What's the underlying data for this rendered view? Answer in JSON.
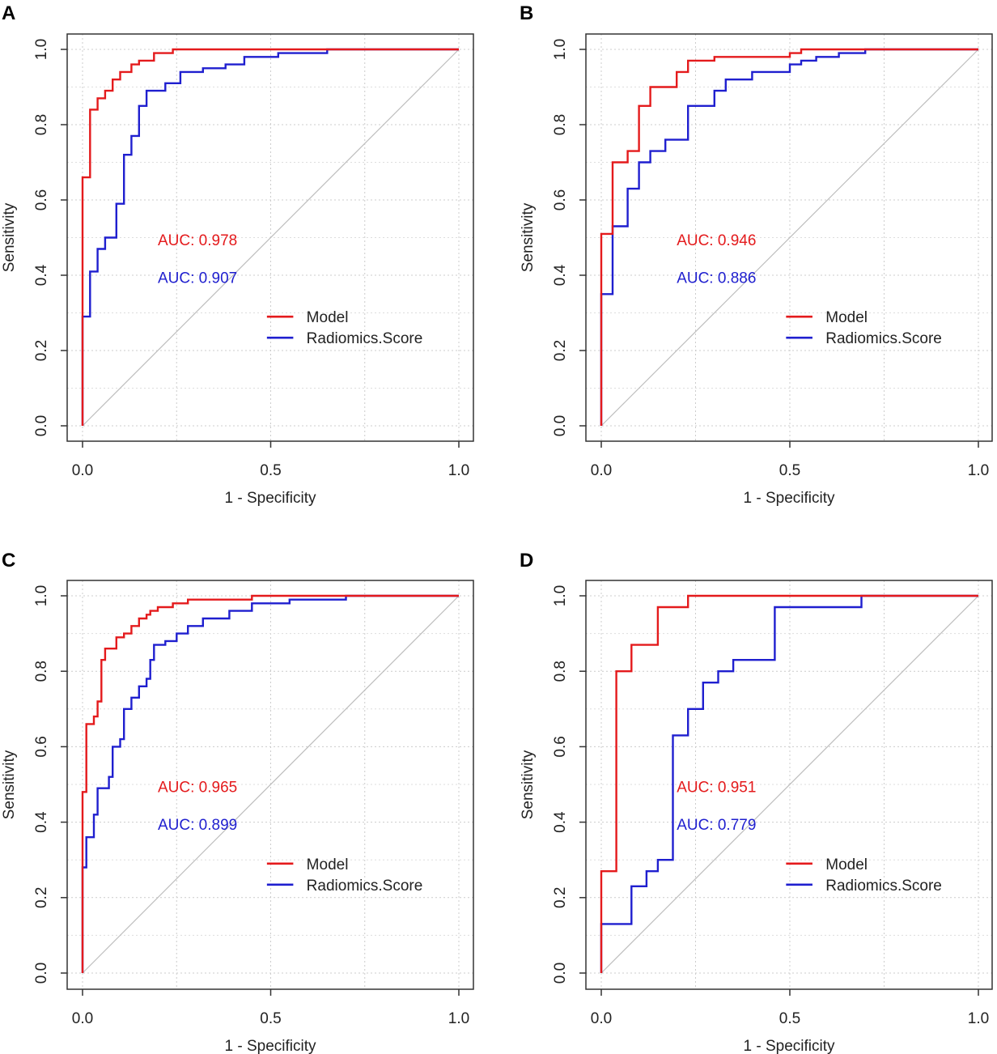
{
  "chart_data": [
    {
      "panel": "A",
      "type": "line",
      "xlabel": "1 - Specificity",
      "ylabel": "Sensitivity",
      "xlim": [
        0,
        1
      ],
      "ylim": [
        0,
        1
      ],
      "x_ticks": [
        "0.0",
        "0.5",
        "1.0"
      ],
      "y_ticks": [
        "0.0",
        "0.2",
        "0.4",
        "0.6",
        "0.8",
        "1.0"
      ],
      "grid": true,
      "diagonal": true,
      "legend_position": "bottom-right",
      "series": [
        {
          "name": "Model",
          "color": "#e41a1c",
          "auc_label": "AUC: 0.978",
          "points": [
            [
              0,
              0
            ],
            [
              0,
              0.29
            ],
            [
              0,
              0.66
            ],
            [
              0.02,
              0.66
            ],
            [
              0.02,
              0.84
            ],
            [
              0.04,
              0.84
            ],
            [
              0.04,
              0.87
            ],
            [
              0.06,
              0.87
            ],
            [
              0.06,
              0.89
            ],
            [
              0.08,
              0.89
            ],
            [
              0.08,
              0.92
            ],
            [
              0.1,
              0.92
            ],
            [
              0.1,
              0.94
            ],
            [
              0.13,
              0.94
            ],
            [
              0.13,
              0.96
            ],
            [
              0.15,
              0.96
            ],
            [
              0.15,
              0.97
            ],
            [
              0.19,
              0.97
            ],
            [
              0.19,
              0.99
            ],
            [
              0.24,
              0.99
            ],
            [
              0.24,
              1.0
            ],
            [
              0.65,
              1.0
            ],
            [
              1.0,
              1.0
            ]
          ]
        },
        {
          "name": "Radiomics.Score",
          "color": "#1f1fcf",
          "auc_label": "AUC: 0.907",
          "points": [
            [
              0,
              0
            ],
            [
              0,
              0.29
            ],
            [
              0.02,
              0.29
            ],
            [
              0.02,
              0.41
            ],
            [
              0.04,
              0.41
            ],
            [
              0.04,
              0.47
            ],
            [
              0.06,
              0.47
            ],
            [
              0.06,
              0.5
            ],
            [
              0.09,
              0.5
            ],
            [
              0.09,
              0.59
            ],
            [
              0.11,
              0.59
            ],
            [
              0.11,
              0.72
            ],
            [
              0.13,
              0.72
            ],
            [
              0.13,
              0.77
            ],
            [
              0.15,
              0.77
            ],
            [
              0.15,
              0.85
            ],
            [
              0.17,
              0.85
            ],
            [
              0.17,
              0.89
            ],
            [
              0.22,
              0.89
            ],
            [
              0.22,
              0.91
            ],
            [
              0.26,
              0.91
            ],
            [
              0.26,
              0.94
            ],
            [
              0.32,
              0.94
            ],
            [
              0.32,
              0.95
            ],
            [
              0.38,
              0.95
            ],
            [
              0.38,
              0.96
            ],
            [
              0.43,
              0.96
            ],
            [
              0.43,
              0.98
            ],
            [
              0.52,
              0.98
            ],
            [
              0.52,
              0.99
            ],
            [
              0.65,
              0.99
            ],
            [
              0.65,
              1.0
            ],
            [
              1.0,
              1.0
            ]
          ]
        }
      ]
    },
    {
      "panel": "B",
      "type": "line",
      "xlabel": "1 - Specificity",
      "ylabel": "Sensitivity",
      "xlim": [
        0,
        1
      ],
      "ylim": [
        0,
        1
      ],
      "x_ticks": [
        "0.0",
        "0.5",
        "1.0"
      ],
      "y_ticks": [
        "0.0",
        "0.2",
        "0.4",
        "0.6",
        "0.8",
        "1.0"
      ],
      "grid": true,
      "diagonal": true,
      "legend_position": "bottom-right",
      "series": [
        {
          "name": "Model",
          "color": "#e41a1c",
          "auc_label": "AUC: 0.946",
          "points": [
            [
              0,
              0
            ],
            [
              0,
              0.35
            ],
            [
              0,
              0.51
            ],
            [
              0.03,
              0.51
            ],
            [
              0.03,
              0.7
            ],
            [
              0.07,
              0.7
            ],
            [
              0.07,
              0.73
            ],
            [
              0.1,
              0.73
            ],
            [
              0.1,
              0.85
            ],
            [
              0.13,
              0.85
            ],
            [
              0.13,
              0.9
            ],
            [
              0.2,
              0.9
            ],
            [
              0.2,
              0.94
            ],
            [
              0.23,
              0.94
            ],
            [
              0.23,
              0.97
            ],
            [
              0.3,
              0.97
            ],
            [
              0.3,
              0.98
            ],
            [
              0.5,
              0.98
            ],
            [
              0.5,
              0.99
            ],
            [
              0.53,
              0.99
            ],
            [
              0.53,
              1.0
            ],
            [
              0.7,
              1.0
            ],
            [
              1.0,
              1.0
            ]
          ]
        },
        {
          "name": "Radiomics.Score",
          "color": "#1f1fcf",
          "auc_label": "AUC: 0.886",
          "points": [
            [
              0,
              0
            ],
            [
              0,
              0.35
            ],
            [
              0.03,
              0.35
            ],
            [
              0.03,
              0.53
            ],
            [
              0.07,
              0.53
            ],
            [
              0.07,
              0.63
            ],
            [
              0.1,
              0.63
            ],
            [
              0.1,
              0.7
            ],
            [
              0.13,
              0.7
            ],
            [
              0.13,
              0.73
            ],
            [
              0.17,
              0.73
            ],
            [
              0.17,
              0.76
            ],
            [
              0.23,
              0.76
            ],
            [
              0.23,
              0.85
            ],
            [
              0.3,
              0.85
            ],
            [
              0.3,
              0.89
            ],
            [
              0.33,
              0.89
            ],
            [
              0.33,
              0.92
            ],
            [
              0.4,
              0.92
            ],
            [
              0.4,
              0.94
            ],
            [
              0.5,
              0.94
            ],
            [
              0.5,
              0.96
            ],
            [
              0.53,
              0.96
            ],
            [
              0.53,
              0.97
            ],
            [
              0.57,
              0.97
            ],
            [
              0.57,
              0.98
            ],
            [
              0.63,
              0.98
            ],
            [
              0.63,
              0.99
            ],
            [
              0.7,
              0.99
            ],
            [
              0.7,
              1.0
            ],
            [
              1.0,
              1.0
            ]
          ]
        }
      ]
    },
    {
      "panel": "C",
      "type": "line",
      "xlabel": "1 - Specificity",
      "ylabel": "Sensitivity",
      "xlim": [
        0,
        1
      ],
      "ylim": [
        0,
        1
      ],
      "x_ticks": [
        "0.0",
        "0.5",
        "1.0"
      ],
      "y_ticks": [
        "0.0",
        "0.2",
        "0.4",
        "0.6",
        "0.8",
        "1.0"
      ],
      "grid": true,
      "diagonal": true,
      "legend_position": "bottom-right",
      "series": [
        {
          "name": "Model",
          "color": "#e41a1c",
          "auc_label": "AUC: 0.965",
          "points": [
            [
              0,
              0
            ],
            [
              0,
              0.28
            ],
            [
              0,
              0.48
            ],
            [
              0.01,
              0.48
            ],
            [
              0.01,
              0.66
            ],
            [
              0.03,
              0.66
            ],
            [
              0.03,
              0.68
            ],
            [
              0.04,
              0.68
            ],
            [
              0.04,
              0.72
            ],
            [
              0.05,
              0.72
            ],
            [
              0.05,
              0.83
            ],
            [
              0.06,
              0.83
            ],
            [
              0.06,
              0.86
            ],
            [
              0.09,
              0.86
            ],
            [
              0.09,
              0.89
            ],
            [
              0.11,
              0.89
            ],
            [
              0.11,
              0.9
            ],
            [
              0.13,
              0.9
            ],
            [
              0.13,
              0.92
            ],
            [
              0.15,
              0.92
            ],
            [
              0.15,
              0.94
            ],
            [
              0.17,
              0.94
            ],
            [
              0.17,
              0.95
            ],
            [
              0.18,
              0.95
            ],
            [
              0.18,
              0.96
            ],
            [
              0.2,
              0.96
            ],
            [
              0.2,
              0.97
            ],
            [
              0.24,
              0.97
            ],
            [
              0.24,
              0.98
            ],
            [
              0.28,
              0.98
            ],
            [
              0.28,
              0.99
            ],
            [
              0.45,
              0.99
            ],
            [
              0.45,
              1.0
            ],
            [
              0.7,
              1.0
            ],
            [
              1.0,
              1.0
            ]
          ]
        },
        {
          "name": "Radiomics.Score",
          "color": "#1f1fcf",
          "auc_label": "AUC: 0.899",
          "points": [
            [
              0,
              0
            ],
            [
              0,
              0.28
            ],
            [
              0.01,
              0.28
            ],
            [
              0.01,
              0.36
            ],
            [
              0.03,
              0.36
            ],
            [
              0.03,
              0.42
            ],
            [
              0.04,
              0.42
            ],
            [
              0.04,
              0.49
            ],
            [
              0.07,
              0.49
            ],
            [
              0.07,
              0.52
            ],
            [
              0.08,
              0.52
            ],
            [
              0.08,
              0.6
            ],
            [
              0.1,
              0.6
            ],
            [
              0.1,
              0.62
            ],
            [
              0.11,
              0.62
            ],
            [
              0.11,
              0.7
            ],
            [
              0.13,
              0.7
            ],
            [
              0.13,
              0.73
            ],
            [
              0.15,
              0.73
            ],
            [
              0.15,
              0.76
            ],
            [
              0.17,
              0.76
            ],
            [
              0.17,
              0.78
            ],
            [
              0.18,
              0.78
            ],
            [
              0.18,
              0.83
            ],
            [
              0.19,
              0.83
            ],
            [
              0.19,
              0.87
            ],
            [
              0.22,
              0.87
            ],
            [
              0.22,
              0.88
            ],
            [
              0.25,
              0.88
            ],
            [
              0.25,
              0.9
            ],
            [
              0.28,
              0.9
            ],
            [
              0.28,
              0.92
            ],
            [
              0.32,
              0.92
            ],
            [
              0.32,
              0.94
            ],
            [
              0.39,
              0.94
            ],
            [
              0.39,
              0.96
            ],
            [
              0.45,
              0.96
            ],
            [
              0.45,
              0.98
            ],
            [
              0.55,
              0.98
            ],
            [
              0.55,
              0.99
            ],
            [
              0.7,
              0.99
            ],
            [
              0.7,
              1.0
            ],
            [
              1.0,
              1.0
            ]
          ]
        }
      ]
    },
    {
      "panel": "D",
      "type": "line",
      "xlabel": "1 - Specificity",
      "ylabel": "Sensitivity",
      "xlim": [
        0,
        1
      ],
      "ylim": [
        0,
        1
      ],
      "x_ticks": [
        "0.0",
        "0.5",
        "1.0"
      ],
      "y_ticks": [
        "0.0",
        "0.2",
        "0.4",
        "0.6",
        "0.8",
        "1.0"
      ],
      "grid": true,
      "diagonal": true,
      "legend_position": "bottom-right",
      "series": [
        {
          "name": "Model",
          "color": "#e41a1c",
          "auc_label": "AUC: 0.951",
          "points": [
            [
              0,
              0
            ],
            [
              0,
              0.13
            ],
            [
              0,
              0.27
            ],
            [
              0.04,
              0.27
            ],
            [
              0.04,
              0.8
            ],
            [
              0.08,
              0.8
            ],
            [
              0.08,
              0.87
            ],
            [
              0.15,
              0.87
            ],
            [
              0.15,
              0.97
            ],
            [
              0.23,
              0.97
            ],
            [
              0.23,
              1.0
            ],
            [
              0.69,
              1.0
            ],
            [
              1.0,
              1.0
            ]
          ]
        },
        {
          "name": "Radiomics.Score",
          "color": "#1f1fcf",
          "auc_label": "AUC: 0.779",
          "points": [
            [
              0,
              0
            ],
            [
              0,
              0.13
            ],
            [
              0.08,
              0.13
            ],
            [
              0.08,
              0.23
            ],
            [
              0.12,
              0.23
            ],
            [
              0.12,
              0.27
            ],
            [
              0.15,
              0.27
            ],
            [
              0.15,
              0.3
            ],
            [
              0.19,
              0.3
            ],
            [
              0.19,
              0.63
            ],
            [
              0.23,
              0.63
            ],
            [
              0.23,
              0.7
            ],
            [
              0.27,
              0.7
            ],
            [
              0.27,
              0.77
            ],
            [
              0.31,
              0.77
            ],
            [
              0.31,
              0.8
            ],
            [
              0.35,
              0.8
            ],
            [
              0.35,
              0.83
            ],
            [
              0.46,
              0.83
            ],
            [
              0.46,
              0.97
            ],
            [
              0.69,
              0.97
            ],
            [
              0.69,
              1.0
            ],
            [
              1.0,
              1.0
            ]
          ]
        }
      ]
    }
  ]
}
